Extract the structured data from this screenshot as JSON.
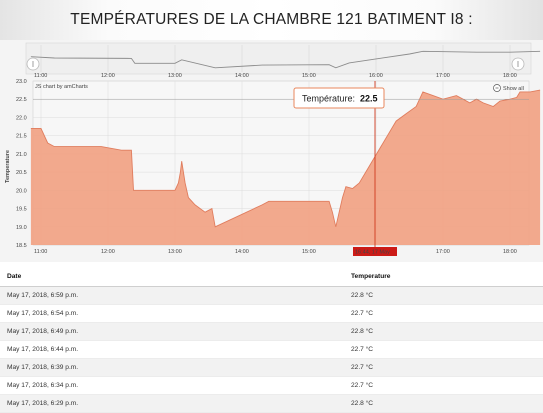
{
  "header": {
    "title": "TEMPÉRATURES DE LA CHAMBRE 121 BATIMENT I8 :"
  },
  "chart_data": {
    "type": "area",
    "xlabel": "",
    "ylabel": "Temperature",
    "ylim": [
      18.5,
      23.0
    ],
    "yticks": [
      "18.5",
      "19.0",
      "19.5",
      "20.0",
      "20.5",
      "21.0",
      "21.5",
      "22.0",
      "22.5",
      "23.0"
    ],
    "xticks": [
      "11:00",
      "12:00",
      "13:00",
      "14:00",
      "15:00",
      "16:00",
      "17:00",
      "18:00"
    ],
    "scrollbar_ticks": [
      "11:00",
      "12:00",
      "13:00",
      "14:00",
      "15:00",
      "16:00",
      "17:00",
      "18:00"
    ],
    "watermark": "JS chart by amCharts",
    "zoom_label": "Show all",
    "tooltip": {
      "label": "Température:",
      "value": "22.5"
    },
    "cursor_label": "16:44, 17 May",
    "grid": true,
    "colors": {
      "fill": "#f1a283",
      "line": "#e07d5e",
      "cursor": "#d03a1f",
      "tooltip_border": "#e8875d",
      "cursor_label_bg": "#cc1b17"
    },
    "series": [
      {
        "values": [
          [
            10.85,
            21.7
          ],
          [
            11.0,
            21.7
          ],
          [
            11.1,
            21.3
          ],
          [
            11.2,
            21.2
          ],
          [
            11.9,
            21.2
          ],
          [
            12.2,
            21.1
          ],
          [
            12.35,
            21.1
          ],
          [
            12.38,
            20.0
          ],
          [
            13.0,
            20.0
          ],
          [
            13.05,
            20.2
          ],
          [
            13.08,
            20.5
          ],
          [
            13.1,
            20.8
          ],
          [
            13.15,
            20.2
          ],
          [
            13.2,
            19.8
          ],
          [
            13.3,
            19.6
          ],
          [
            13.45,
            19.4
          ],
          [
            13.55,
            19.5
          ],
          [
            13.6,
            19.0
          ],
          [
            14.3,
            19.6
          ],
          [
            14.4,
            19.7
          ],
          [
            15.3,
            19.7
          ],
          [
            15.35,
            19.4
          ],
          [
            15.4,
            19.0
          ],
          [
            15.5,
            19.8
          ],
          [
            15.55,
            20.1
          ],
          [
            15.65,
            20.05
          ],
          [
            15.75,
            20.2
          ],
          [
            16.3,
            21.9
          ],
          [
            16.45,
            22.1
          ],
          [
            16.6,
            22.3
          ],
          [
            16.7,
            22.7
          ],
          [
            16.85,
            22.6
          ],
          [
            17.0,
            22.5
          ],
          [
            17.2,
            22.6
          ],
          [
            17.3,
            22.5
          ],
          [
            17.4,
            22.4
          ],
          [
            17.5,
            22.5
          ],
          [
            17.6,
            22.4
          ],
          [
            17.75,
            22.3
          ],
          [
            17.85,
            22.45
          ],
          [
            18.0,
            22.5
          ],
          [
            18.1,
            22.55
          ],
          [
            18.15,
            22.7
          ],
          [
            18.3,
            22.7
          ],
          [
            18.45,
            22.75
          ]
        ]
      }
    ],
    "overview_series": [
      [
        10.85,
        21.5
      ],
      [
        11.2,
        21.2
      ],
      [
        12.35,
        21.1
      ],
      [
        12.4,
        20.0
      ],
      [
        13.0,
        20.0
      ],
      [
        13.1,
        20.8
      ],
      [
        13.6,
        19.0
      ],
      [
        14.3,
        19.6
      ],
      [
        15.3,
        19.7
      ],
      [
        15.4,
        19.0
      ],
      [
        15.6,
        20.1
      ],
      [
        16.0,
        21.0
      ],
      [
        16.5,
        22.1
      ],
      [
        16.7,
        22.7
      ],
      [
        17.5,
        22.5
      ],
      [
        18.0,
        22.5
      ],
      [
        18.45,
        22.7
      ]
    ]
  },
  "table": {
    "headers": [
      "Date",
      "Temperature"
    ],
    "rows": [
      [
        "May 17, 2018, 6:59 p.m.",
        "22.8 °C"
      ],
      [
        "May 17, 2018, 6:54 p.m.",
        "22.7 °C"
      ],
      [
        "May 17, 2018, 6:49 p.m.",
        "22.8 °C"
      ],
      [
        "May 17, 2018, 6:44 p.m.",
        "22.7 °C"
      ],
      [
        "May 17, 2018, 6:39 p.m.",
        "22.7 °C"
      ],
      [
        "May 17, 2018, 6:34 p.m.",
        "22.7 °C"
      ],
      [
        "May 17, 2018, 6:29 p.m.",
        "22.8 °C"
      ]
    ]
  }
}
